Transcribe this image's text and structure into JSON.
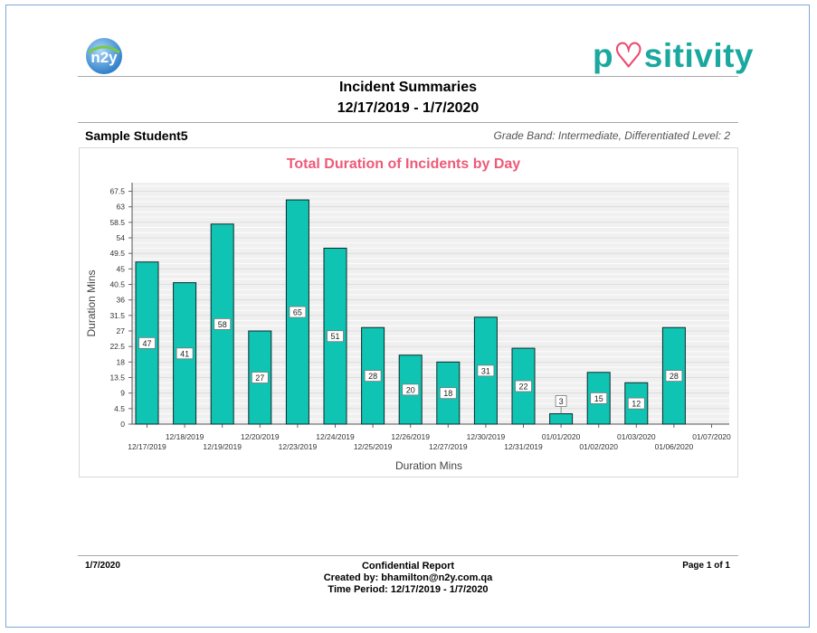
{
  "header": {
    "left_logo_text": "n2y",
    "right_logo_text": "positivity",
    "right_logo_prefix": "p",
    "right_logo_suffix": "sitivity",
    "title": "Incident Summaries",
    "subtitle": "12/17/2019 - 1/7/2020"
  },
  "student": {
    "name": "Sample Student5",
    "grade_info": "Grade Band: Intermediate, Differentiated Level: 2"
  },
  "colors": {
    "bar_fill": "#10c4b4",
    "bar_stroke": "#0b2a2a",
    "title_color": "#ee5a78",
    "logo_teal": "#1aa89f",
    "logo_pink": "#ec4a6e",
    "frame_border": "#7fa7d6"
  },
  "chart_data": {
    "type": "bar",
    "title": "Total Duration of Incidents by Day",
    "xlabel": "Duration Mins",
    "ylabel": "Duration Mins",
    "ylim": [
      0,
      70
    ],
    "yticks": [
      "0",
      "4.5",
      "9",
      "13.5",
      "18",
      "22.5",
      "27",
      "31.5",
      "36",
      "40.5",
      "45",
      "49.5",
      "54",
      "58.5",
      "63",
      "67.5"
    ],
    "categories": [
      "12/17/2019",
      "12/18/2019",
      "12/19/2019",
      "12/20/2019",
      "12/23/2019",
      "12/24/2019",
      "12/25/2019",
      "12/26/2019",
      "12/27/2019",
      "12/30/2019",
      "12/31/2019",
      "01/01/2020",
      "01/02/2020",
      "01/03/2020",
      "01/06/2020",
      "01/07/2020"
    ],
    "values": [
      47,
      41,
      58,
      27,
      65,
      51,
      28,
      20,
      18,
      31,
      22,
      3,
      15,
      12,
      28,
      null
    ],
    "data_labels": [
      "47",
      "41",
      "58",
      "27",
      "65",
      "51",
      "28",
      "20",
      "18",
      "31",
      "22",
      "3",
      "15",
      "12",
      "28",
      ""
    ],
    "grid": true
  },
  "footer": {
    "date": "1/7/2020",
    "confidential": "Confidential Report",
    "created_by": "Created by: bhamilton@n2y.com.qa",
    "time_period": "Time Period: 12/17/2019 - 1/7/2020",
    "page": "Page 1 of 1"
  }
}
